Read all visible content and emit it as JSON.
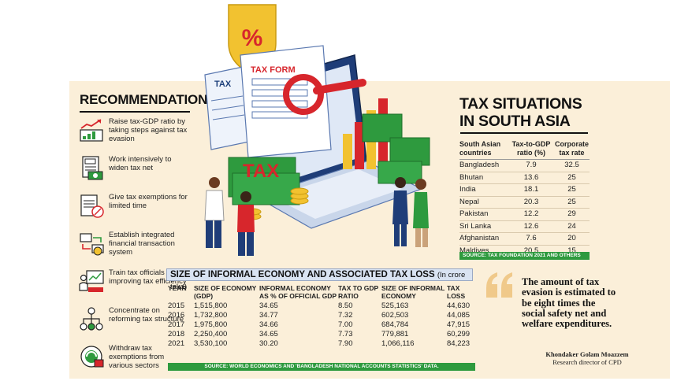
{
  "recommendations": {
    "title": "RECOMMENDATIONS",
    "items": [
      {
        "icon": "growth-chart-icon",
        "text": "Raise tax-GDP ratio by taking steps against tax evasion"
      },
      {
        "icon": "tax-document-icon",
        "text": "Work intensively to widen tax net"
      },
      {
        "icon": "tax-exemption-icon",
        "text": "Give tax exemptions for limited time"
      },
      {
        "icon": "transaction-system-icon",
        "text": "Establish integrated financial transaction system"
      },
      {
        "icon": "training-icon",
        "text": "Train tax officials for improving tax efficiency"
      },
      {
        "icon": "tax-structure-icon",
        "text": "Concentrate on reforming tax structure"
      },
      {
        "icon": "withdraw-exemption-icon",
        "text": "Withdraw tax exemptions from various sectors"
      }
    ]
  },
  "illustration": {
    "tax_label": "TAX",
    "tax_form_label": "TAX FORM",
    "tax_stack_label": "TAX",
    "percent_symbol": "%"
  },
  "south_asia": {
    "title": "TAX SITUATIONS IN SOUTH ASIA",
    "headers": [
      "South Asian countries",
      "Tax-to-GDP ratio (%)",
      "Corporate tax rate"
    ],
    "rows": [
      [
        "Bangladesh",
        "7.9",
        "32.5"
      ],
      [
        "Bhutan",
        "13.6",
        "25"
      ],
      [
        "India",
        "18.1",
        "25"
      ],
      [
        "Nepal",
        "20.3",
        "25"
      ],
      [
        "Pakistan",
        "12.2",
        "29"
      ],
      [
        "Sri Lanka",
        "12.6",
        "24"
      ],
      [
        "Afghanistan",
        "7.6",
        "20"
      ],
      [
        "Maldives",
        "20.5",
        "15"
      ]
    ],
    "source": "SOURCE: TAX FOUNDATION 2021 AND OTHERS"
  },
  "informal": {
    "title": "SIZE OF INFORMAL ECONOMY AND ASSOCIATED TAX LOSS",
    "unit": "(In crore taka)",
    "headers": [
      "YEAR",
      "SIZE OF ECONOMY (GDP)",
      "INFORMAL ECONOMY AS % OF OFFICIAL GDP",
      "TAX TO GDP RATIO",
      "SIZE OF INFORMAL ECONOMY",
      "TAX LOSS"
    ],
    "rows": [
      [
        "2015",
        "1,515,800",
        "34.65",
        "8.50",
        "525,163",
        "44,630"
      ],
      [
        "2016",
        "1,732,800",
        "34.77",
        "7.32",
        "602,503",
        "44,085"
      ],
      [
        "2017",
        "1,975,800",
        "34.66",
        "7.00",
        "684,784",
        "47,915"
      ],
      [
        "2018",
        "2,250,400",
        "34.65",
        "7.73",
        "779,881",
        "60,299"
      ],
      [
        "2021",
        "3,530,100",
        "30.20",
        "7.90",
        "1,066,116",
        "84,223"
      ]
    ],
    "source": "SOURCE: WORLD ECONOMICS AND 'BANGLADESH NATIONAL ACCOUNTS STATISTICS' DATA."
  },
  "quote": {
    "text": "The amount of tax evasion is estimated to be eight times the social safety net and welfare expenditures.",
    "author_name": "Khondaker Golam Moazzem",
    "author_title": "Research director of CPD"
  },
  "colors": {
    "background": "#fbefd9",
    "accent_green": "#2e9a3e",
    "accent_red": "#d7262c",
    "header_blue": "#d9e3f2"
  }
}
